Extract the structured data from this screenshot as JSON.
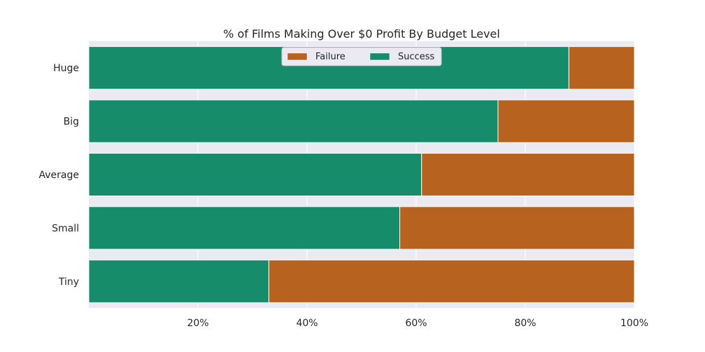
{
  "chart_data": {
    "type": "bar",
    "orientation": "horizontal",
    "stacked": true,
    "title": "% of Films Making Over $0 Profit By Budget Level",
    "xlabel": "",
    "ylabel": "",
    "categories": [
      "Huge",
      "Big",
      "Average",
      "Small",
      "Tiny"
    ],
    "series": [
      {
        "name": "Success",
        "color": "#168c6b",
        "values": [
          88,
          75,
          61,
          57,
          33
        ]
      },
      {
        "name": "Failure",
        "color": "#b8621f",
        "values": [
          12,
          25,
          39,
          43,
          67
        ]
      }
    ],
    "xlim": [
      0,
      100
    ],
    "xticks": [
      20,
      40,
      60,
      80,
      100
    ],
    "xtick_labels": [
      "20%",
      "40%",
      "60%",
      "80%",
      "100%"
    ],
    "grid": true,
    "background": "#eaeaf2",
    "legend": {
      "placement": "top-center",
      "entries": [
        "Failure",
        "Success"
      ]
    }
  }
}
